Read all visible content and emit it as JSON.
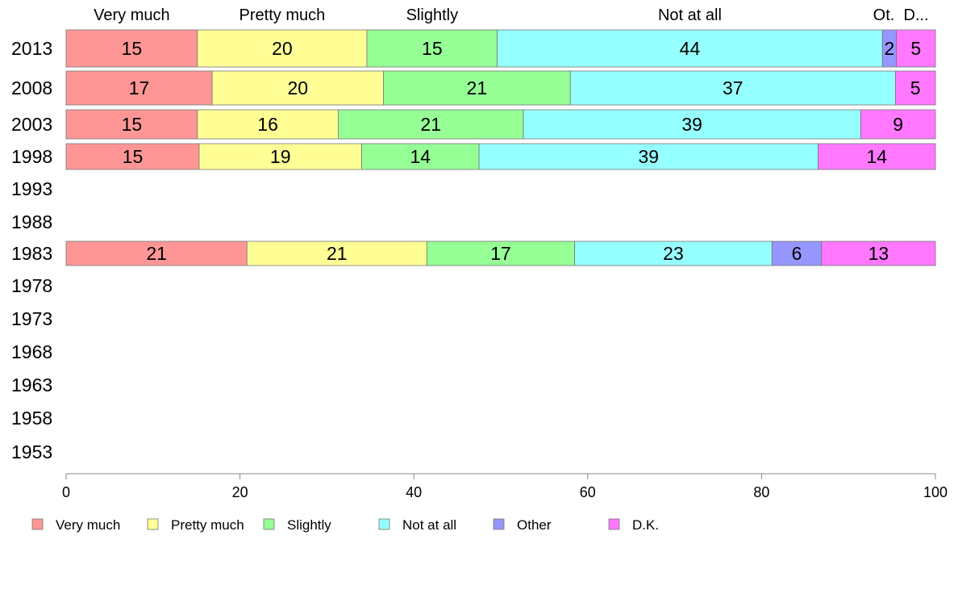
{
  "chart_data": {
    "type": "bar",
    "orientation": "horizontal",
    "stacked": true,
    "title": "",
    "xlabel": "",
    "ylabel": "",
    "xlim": [
      0,
      100
    ],
    "x_ticks": [
      "0",
      "20",
      "40",
      "60",
      "80",
      "100"
    ],
    "grid": false,
    "legend_position": "bottom",
    "categories": [
      "2013",
      "2008",
      "2003",
      "1998",
      "1993",
      "1988",
      "1983",
      "1978",
      "1973",
      "1968",
      "1963",
      "1958",
      "1953"
    ],
    "column_headers": [
      "Very much",
      "Pretty much",
      "Slightly",
      "Not at all",
      "Ot.",
      "D..."
    ],
    "series": [
      {
        "name": "Very much",
        "color": "#ff9696",
        "values": [
          15.1,
          16.8,
          15.1,
          15.3,
          null,
          null,
          20.8,
          null,
          null,
          null,
          null,
          null,
          null
        ],
        "labels": [
          "15",
          "17",
          "15",
          "15",
          "",
          "",
          "21",
          "",
          "",
          "",
          "",
          "",
          ""
        ]
      },
      {
        "name": "Pretty much",
        "color": "#ffff96",
        "values": [
          19.5,
          19.7,
          16.2,
          18.7,
          null,
          null,
          20.7,
          null,
          null,
          null,
          null,
          null,
          null
        ],
        "labels": [
          "20",
          "20",
          "16",
          "19",
          "",
          "",
          "21",
          "",
          "",
          "",
          "",
          "",
          ""
        ]
      },
      {
        "name": "Slightly",
        "color": "#96ff96",
        "values": [
          15.0,
          21.5,
          21.3,
          13.5,
          null,
          null,
          17.0,
          null,
          null,
          null,
          null,
          null,
          null
        ],
        "labels": [
          "15",
          "21",
          "21",
          "14",
          "",
          "",
          "17",
          "",
          "",
          "",
          "",
          "",
          ""
        ]
      },
      {
        "name": "Not at all",
        "color": "#96ffff",
        "values": [
          44.3,
          37.4,
          38.8,
          39.0,
          null,
          null,
          22.7,
          null,
          null,
          null,
          null,
          null,
          null
        ],
        "labels": [
          "44",
          "37",
          "39",
          "39",
          "",
          "",
          "23",
          "",
          "",
          "",
          "",
          "",
          ""
        ]
      },
      {
        "name": "Other",
        "color": "#9696ff",
        "values": [
          1.6,
          0.0,
          0.0,
          0.0,
          null,
          null,
          5.7,
          null,
          null,
          null,
          null,
          null,
          null
        ],
        "labels": [
          "2",
          "",
          "",
          "",
          "",
          "",
          "6",
          "",
          "",
          "",
          "",
          "",
          ""
        ]
      },
      {
        "name": "D.K.",
        "color": "#ff78ff",
        "values": [
          4.5,
          4.6,
          8.6,
          13.5,
          null,
          null,
          13.1,
          null,
          null,
          null,
          null,
          null,
          null
        ],
        "labels": [
          "5",
          "5",
          "9",
          "14",
          "",
          "",
          "13",
          "",
          "",
          "",
          "",
          "",
          ""
        ]
      }
    ]
  }
}
